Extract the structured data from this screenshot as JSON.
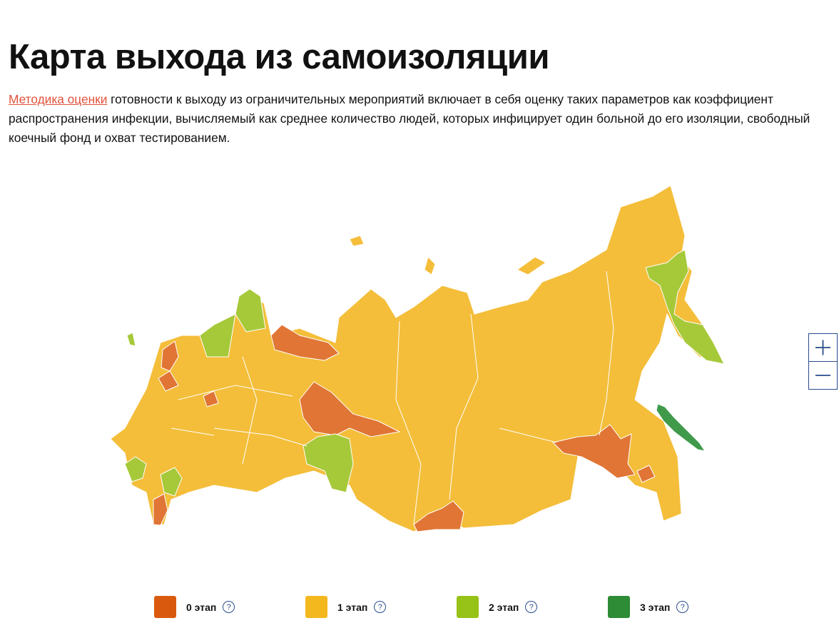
{
  "header": {
    "title": "Карта выхода из самоизоляции"
  },
  "description": {
    "link": "Методика оценки",
    "text": "готовности к выходу из ограничительных мероприятий включает в себя оценку таких параметров как коэффициент распространения инфекции, вычисляемый как среднее количество людей, которых инфицирует один больной до его изоляции, свободный коечный фонд и охват тестированием."
  },
  "legend": {
    "items": [
      {
        "label": "0 этап",
        "color": "#d95a0f",
        "help": "?"
      },
      {
        "label": "1 этап",
        "color": "#f4b81f",
        "help": "?"
      },
      {
        "label": "2 этап",
        "color": "#97c217",
        "help": "?"
      },
      {
        "label": "3 этап",
        "color": "#2e8b36",
        "help": "?"
      }
    ]
  }
}
